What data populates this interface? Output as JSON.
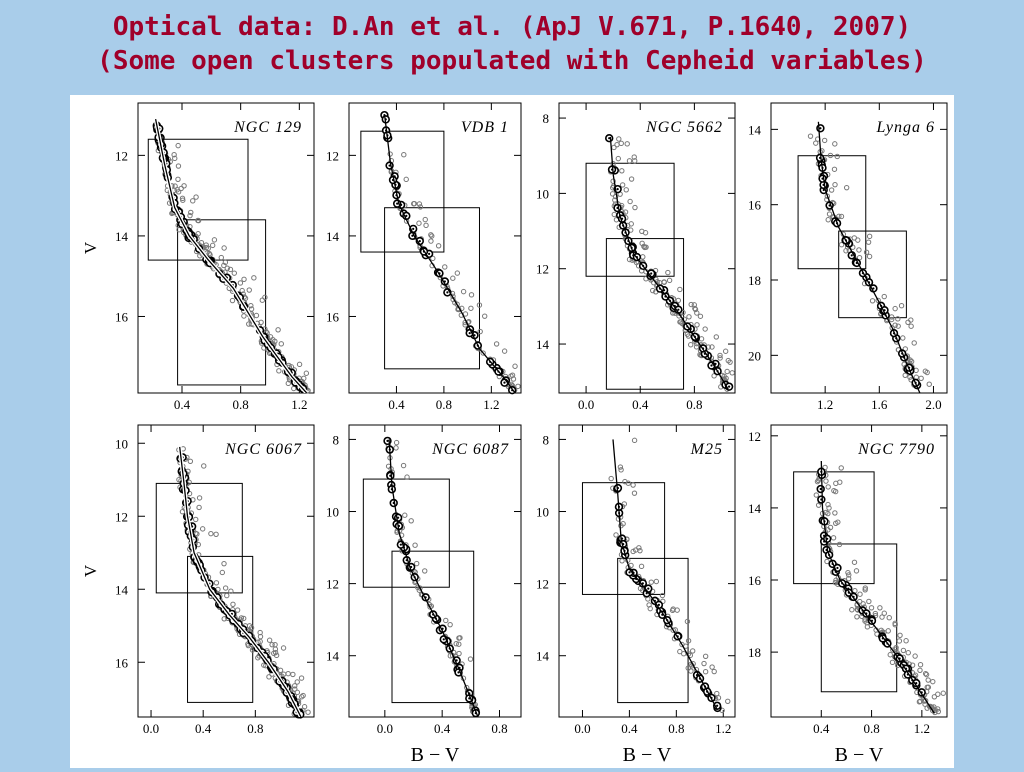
{
  "slide": {
    "title_line1": "Optical data: D.An et al. (ApJ V.671, P.1640, 2007)",
    "title_line2": "(Some open clusters populated with Cepheid variables)",
    "colors": {
      "background": "#a9cdea",
      "title": "#a0002a",
      "panel_bg": "#ffffff"
    }
  },
  "chart_data": [
    {
      "type": "scatter",
      "title": "NGC 129",
      "xlabel": "",
      "ylabel": "V",
      "xlim": [
        0.1,
        1.3
      ],
      "ylim": [
        17.9,
        10.7
      ],
      "xticks": [
        0.4,
        0.8,
        1.2
      ],
      "yticks": [
        12,
        14,
        16
      ],
      "isochrone": {
        "x": [
          0.22,
          0.28,
          0.35,
          0.45,
          0.58,
          0.75,
          0.95,
          1.15,
          1.25
        ],
        "y": [
          11.1,
          12.2,
          13.3,
          14.0,
          14.6,
          15.3,
          16.5,
          17.5,
          17.9
        ]
      },
      "boxes": [
        [
          0.17,
          11.6,
          0.85,
          14.6
        ],
        [
          0.37,
          13.6,
          0.97,
          17.7
        ]
      ]
    },
    {
      "type": "scatter",
      "title": "VDB 1",
      "xlabel": "",
      "ylabel": "",
      "xlim": [
        0.0,
        1.45
      ],
      "ylim": [
        17.9,
        10.7
      ],
      "xticks": [
        0.4,
        0.8,
        1.2
      ],
      "yticks": [
        12,
        14,
        16
      ],
      "isochrone": {
        "x": [
          0.3,
          0.35,
          0.42,
          0.55,
          0.75,
          0.95,
          1.1,
          1.3,
          1.4
        ],
        "y": [
          11.0,
          12.2,
          13.2,
          14.0,
          14.9,
          15.9,
          16.8,
          17.5,
          17.9
        ]
      },
      "boxes": [
        [
          0.1,
          11.4,
          0.8,
          14.4
        ],
        [
          0.3,
          13.3,
          1.1,
          17.3
        ]
      ]
    },
    {
      "type": "scatter",
      "title": "NGC 5662",
      "xlabel": "",
      "ylabel": "",
      "xlim": [
        -0.2,
        1.1
      ],
      "ylim": [
        15.3,
        7.6
      ],
      "xticks": [
        0.0,
        0.4,
        0.8
      ],
      "yticks": [
        8,
        10,
        12,
        14
      ],
      "isochrone": {
        "x": [
          0.18,
          0.2,
          0.25,
          0.35,
          0.5,
          0.65,
          0.8,
          0.95,
          1.05
        ],
        "y": [
          8.5,
          9.5,
          10.6,
          11.6,
          12.3,
          13.0,
          13.8,
          14.6,
          15.2
        ]
      },
      "boxes": [
        [
          0.0,
          9.2,
          0.65,
          12.2
        ],
        [
          0.15,
          11.2,
          0.72,
          15.2
        ]
      ]
    },
    {
      "type": "scatter",
      "title": "Lynga 6",
      "xlabel": "",
      "ylabel": "",
      "xlim": [
        0.8,
        2.1
      ],
      "ylim": [
        21.0,
        13.3
      ],
      "xticks": [
        1.2,
        1.6,
        2.0
      ],
      "yticks": [
        14,
        16,
        18,
        20
      ],
      "isochrone": {
        "x": [
          1.15,
          1.17,
          1.2,
          1.3,
          1.45,
          1.6,
          1.7,
          1.8,
          1.9
        ],
        "y": [
          13.8,
          14.8,
          15.6,
          16.6,
          17.6,
          18.6,
          19.3,
          20.2,
          21.0
        ]
      },
      "boxes": [
        [
          1.0,
          14.7,
          1.5,
          17.7
        ],
        [
          1.3,
          16.7,
          1.8,
          19.0
        ]
      ]
    },
    {
      "type": "scatter",
      "title": "NGC 6067",
      "xlabel": "",
      "ylabel": "V",
      "xlim": [
        -0.1,
        1.25
      ],
      "ylim": [
        17.5,
        9.5
      ],
      "xticks": [
        0.0,
        0.4,
        0.8
      ],
      "yticks": [
        10,
        12,
        14,
        16
      ],
      "isochrone": {
        "x": [
          0.22,
          0.25,
          0.28,
          0.33,
          0.45,
          0.6,
          0.75,
          0.9,
          1.05,
          1.15
        ],
        "y": [
          10.1,
          11.0,
          12.0,
          13.0,
          14.0,
          14.7,
          15.3,
          16.0,
          16.8,
          17.5
        ]
      },
      "boxes": [
        [
          0.04,
          11.1,
          0.7,
          14.1
        ],
        [
          0.28,
          13.1,
          0.78,
          17.1
        ]
      ]
    },
    {
      "type": "scatter",
      "title": "NGC 6087",
      "xlabel": "B − V",
      "ylabel": "",
      "xlim": [
        -0.25,
        0.95
      ],
      "ylim": [
        15.7,
        7.6
      ],
      "xticks": [
        0.0,
        0.4,
        0.8
      ],
      "yticks": [
        8,
        10,
        12,
        14
      ],
      "isochrone": {
        "x": [
          0.03,
          0.05,
          0.1,
          0.18,
          0.28,
          0.4,
          0.52,
          0.65
        ],
        "y": [
          8.0,
          9.3,
          10.6,
          11.6,
          12.4,
          13.3,
          14.4,
          15.7
        ]
      },
      "boxes": [
        [
          -0.15,
          9.1,
          0.45,
          12.1
        ],
        [
          0.05,
          11.1,
          0.62,
          15.3
        ]
      ]
    },
    {
      "type": "scatter",
      "title": "M25",
      "xlabel": "B − V",
      "ylabel": "",
      "xlim": [
        -0.2,
        1.3
      ],
      "ylim": [
        15.7,
        7.6
      ],
      "xticks": [
        0.0,
        0.4,
        0.8,
        1.2
      ],
      "yticks": [
        8,
        10,
        12,
        14
      ],
      "isochrone": {
        "x": [
          0.26,
          0.3,
          0.33,
          0.4,
          0.55,
          0.7,
          0.85,
          1.0,
          1.15
        ],
        "y": [
          8.0,
          9.5,
          10.8,
          11.6,
          12.2,
          12.9,
          13.7,
          14.6,
          15.5
        ]
      },
      "boxes": [
        [
          0.0,
          9.2,
          0.7,
          12.3
        ],
        [
          0.3,
          11.3,
          0.9,
          15.3
        ]
      ]
    },
    {
      "type": "scatter",
      "title": "NGC 7790",
      "xlabel": "B − V",
      "ylabel": "",
      "xlim": [
        0.0,
        1.4
      ],
      "ylim": [
        19.8,
        11.7
      ],
      "xticks": [
        0.4,
        0.8,
        1.2
      ],
      "yticks": [
        12,
        14,
        16,
        18
      ],
      "isochrone": {
        "x": [
          0.4,
          0.41,
          0.45,
          0.55,
          0.7,
          0.85,
          1.0,
          1.15,
          1.3
        ],
        "y": [
          12.7,
          14.0,
          15.2,
          16.0,
          16.7,
          17.4,
          18.1,
          18.9,
          19.7
        ]
      },
      "boxes": [
        [
          0.18,
          13.0,
          0.82,
          16.1
        ],
        [
          0.4,
          15.0,
          1.0,
          19.1
        ]
      ]
    }
  ]
}
